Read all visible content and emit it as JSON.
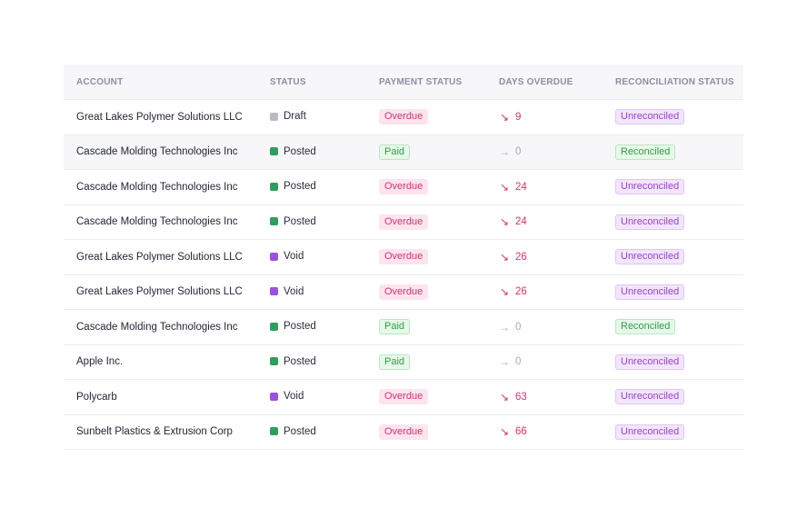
{
  "table": {
    "headers": [
      "ACCOUNT",
      "STATUS",
      "PAYMENT STATUS",
      "DAYS OVERDUE",
      "RECONCILIATION STATUS"
    ],
    "rows": [
      {
        "account": "Great Lakes Polymer Solutions LLC",
        "status": "Draft",
        "status_color": "#b9bac4",
        "payment": "Overdue",
        "days": "9",
        "days_kind": "over",
        "reconciliation": "Unreconciled"
      },
      {
        "account": "Cascade Molding Technologies Inc",
        "status": "Posted",
        "status_color": "#2f9e5b",
        "payment": "Paid",
        "days": "0",
        "days_kind": "zero",
        "reconciliation": "Reconciled"
      },
      {
        "account": "Cascade Molding Technologies Inc",
        "status": "Posted",
        "status_color": "#2f9e5b",
        "payment": "Overdue",
        "days": "24",
        "days_kind": "over",
        "reconciliation": "Unreconciled"
      },
      {
        "account": "Cascade Molding Technologies Inc",
        "status": "Posted",
        "status_color": "#2f9e5b",
        "payment": "Overdue",
        "days": "24",
        "days_kind": "over",
        "reconciliation": "Unreconciled"
      },
      {
        "account": "Great Lakes Polymer Solutions LLC",
        "status": "Void",
        "status_color": "#9b51e0",
        "payment": "Overdue",
        "days": "26",
        "days_kind": "over",
        "reconciliation": "Unreconciled"
      },
      {
        "account": "Great Lakes Polymer Solutions LLC",
        "status": "Void",
        "status_color": "#9b51e0",
        "payment": "Overdue",
        "days": "26",
        "days_kind": "over",
        "reconciliation": "Unreconciled"
      },
      {
        "account": "Cascade Molding Technologies Inc",
        "status": "Posted",
        "status_color": "#2f9e5b",
        "payment": "Paid",
        "days": "0",
        "days_kind": "zero",
        "reconciliation": "Reconciled"
      },
      {
        "account": "Apple Inc.",
        "status": "Posted",
        "status_color": "#2f9e5b",
        "payment": "Paid",
        "days": "0",
        "days_kind": "zero",
        "reconciliation": "Unreconciled"
      },
      {
        "account": "Polycarb",
        "status": "Void",
        "status_color": "#9b51e0",
        "payment": "Overdue",
        "days": "63",
        "days_kind": "over",
        "reconciliation": "Unreconciled"
      },
      {
        "account": "Sunbelt Plastics & Extrusion Corp",
        "status": "Posted",
        "status_color": "#2f9e5b",
        "payment": "Overdue",
        "days": "66",
        "days_kind": "over",
        "reconciliation": "Unreconciled"
      }
    ]
  },
  "icons": {
    "over": "arrow-down-right-icon",
    "zero": "arrow-right-icon"
  }
}
